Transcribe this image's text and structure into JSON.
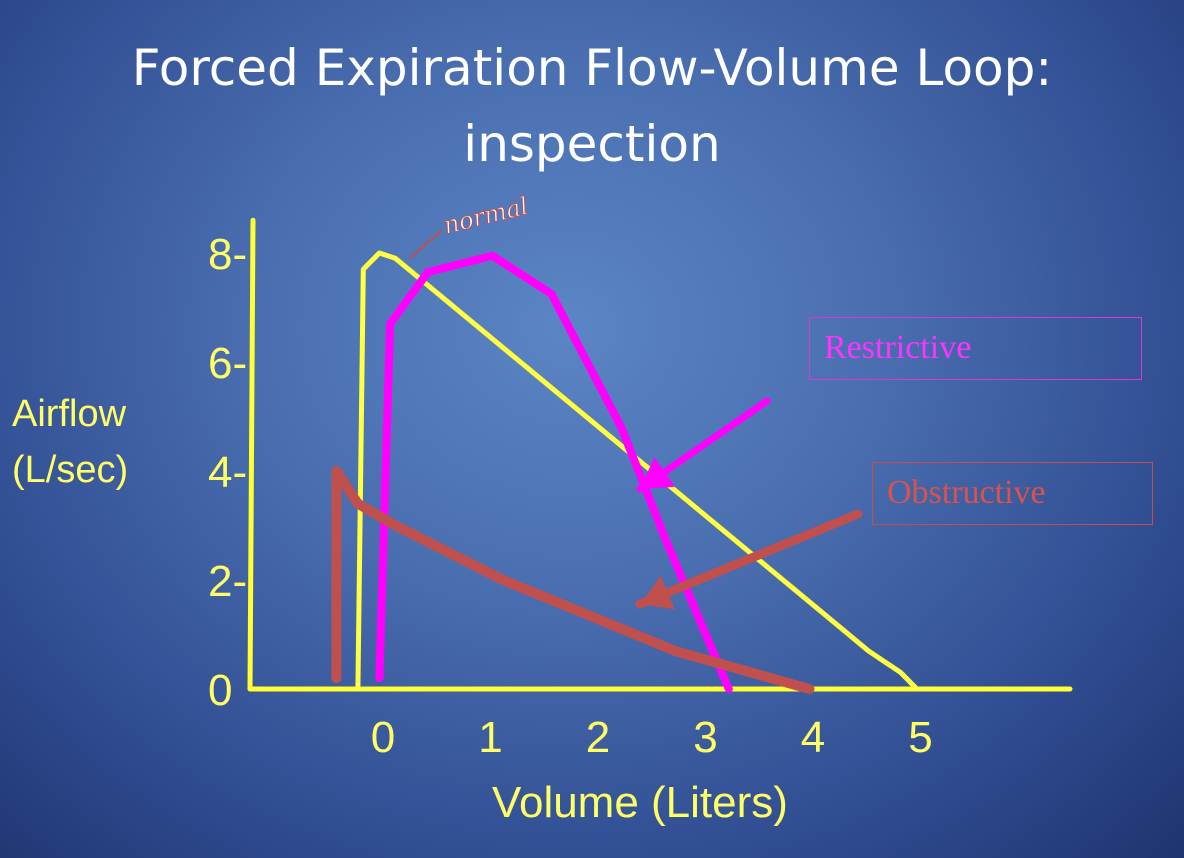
{
  "slide": {
    "title_line1": "Forced Expiration Flow-Volume Loop:",
    "title_line2": "inspection"
  },
  "chart_data": {
    "type": "line",
    "xlabel": "Volume (Liters)",
    "ylabel_line1": "Airflow",
    "ylabel_line2": "(L/sec)",
    "xlim": [
      -0.8,
      6.2
    ],
    "ylim": [
      0,
      8.7
    ],
    "x_ticks": [
      0,
      1,
      2,
      3,
      4,
      5
    ],
    "y_ticks": [
      0,
      2,
      4,
      6,
      8
    ],
    "y_tick_labels": [
      "0",
      "2-",
      "4-",
      "6-",
      "8-"
    ],
    "grid": false,
    "colors": {
      "axis": "#ffff33",
      "axis_text": "#ffff66",
      "normal": "#ffff44",
      "restrictive": "#ff00ff",
      "obstructive": "#c0504d"
    },
    "series": [
      {
        "key": "normal",
        "points": [
          [
            -0.15,
            0
          ],
          [
            -0.1,
            7.7
          ],
          [
            0.05,
            8.0
          ],
          [
            0.2,
            7.9
          ],
          [
            4.6,
            0.7
          ],
          [
            4.9,
            0.3
          ],
          [
            5.05,
            0
          ]
        ]
      },
      {
        "key": "restrictive",
        "points": [
          [
            0.05,
            0.2
          ],
          [
            0.15,
            6.7
          ],
          [
            0.5,
            7.65
          ],
          [
            1.1,
            7.95
          ],
          [
            1.65,
            7.25
          ],
          [
            2.3,
            4.8
          ],
          [
            2.7,
            2.8
          ],
          [
            3.3,
            0
          ]
        ]
      },
      {
        "key": "obstructive",
        "points": [
          [
            -0.35,
            0.2
          ],
          [
            -0.35,
            4.0
          ],
          [
            -0.15,
            3.4
          ],
          [
            0.2,
            3.0
          ],
          [
            1.2,
            2.0
          ],
          [
            2.0,
            1.35
          ],
          [
            2.8,
            0.7
          ],
          [
            4.05,
            0
          ]
        ]
      }
    ],
    "annotations": [
      {
        "text": "normal",
        "series": "normal"
      },
      {
        "text": "Restrictive",
        "series": "restrictive"
      },
      {
        "text": "Obstructive",
        "series": "obstructive"
      }
    ]
  }
}
